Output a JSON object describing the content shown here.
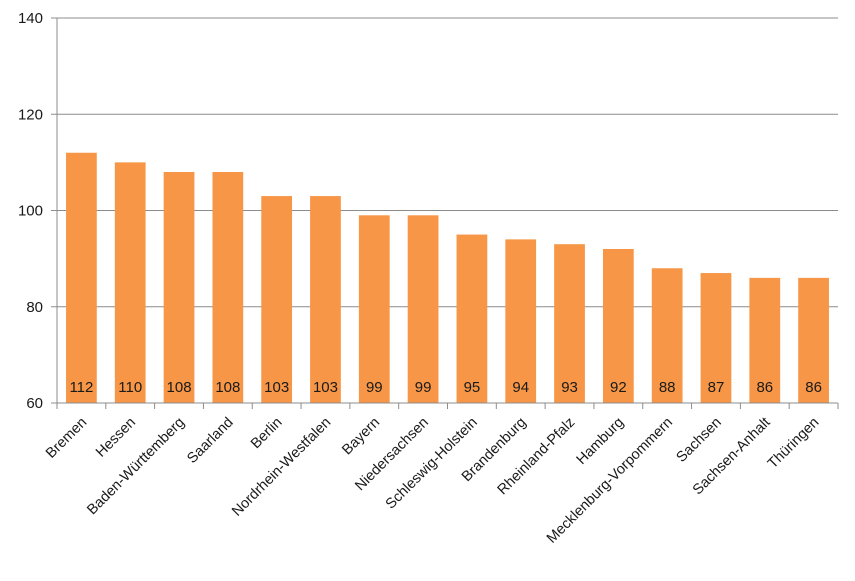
{
  "chart_data": {
    "type": "bar",
    "title": "",
    "xlabel": "",
    "ylabel": "",
    "categories": [
      "Bremen",
      "Hessen",
      "Baden-Württemberg",
      "Saarland",
      "Berlin",
      "Nordrhein-Westfalen",
      "Bayern",
      "Niedersachsen",
      "Schleswig-Holstein",
      "Brandenburg",
      "Rheinland-Pfalz",
      "Hamburg",
      "Mecklenburg-Vorpommern",
      "Sachsen",
      "Sachsen-Anhalt",
      "Thüringen"
    ],
    "values": [
      112,
      110,
      108,
      108,
      103,
      103,
      99,
      99,
      95,
      94,
      93,
      92,
      88,
      87,
      86,
      86
    ],
    "data_labels": [
      "112",
      "110",
      "108",
      "108",
      "103",
      "103",
      "99",
      "99",
      "95",
      "94",
      "93",
      "92",
      "88",
      "87",
      "86",
      "86"
    ],
    "ylim": [
      60,
      140
    ],
    "yticks": [
      60,
      80,
      100,
      120,
      140
    ],
    "ytick_labels": [
      "60",
      "80",
      "100",
      "120",
      "140"
    ],
    "grid": "horizontal",
    "legend": "none",
    "colors": {
      "bar": "#F79646",
      "gridline": "#8c8c8c",
      "axis": "#8c8c8c",
      "text": "#1a1a1a"
    }
  }
}
